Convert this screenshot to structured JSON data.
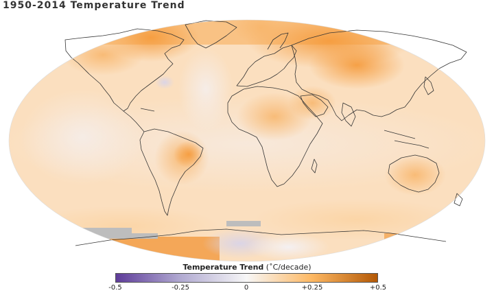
{
  "title": "1950-2014 Temperature Trend",
  "legend": {
    "label_bold": "Temperature Trend",
    "label_unit": "(˚C/decade)",
    "ticks": [
      "-0.5",
      "-0.25",
      "0",
      "+0.25",
      "+0.5"
    ],
    "range": [
      -0.5,
      0.5
    ],
    "colors": {
      "min": "#5e3c99",
      "low": "#b2abd2",
      "zero": "#f7f7f7",
      "high": "#fdb863",
      "max": "#b35806"
    }
  },
  "map": {
    "projection": "Robinson",
    "ocean_base": "#fce7cf",
    "no_data": "#bdbdbd",
    "coastline": "#333333"
  }
}
